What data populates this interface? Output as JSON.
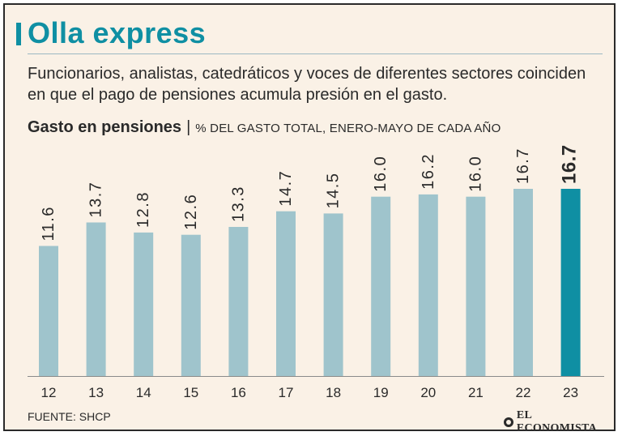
{
  "header": {
    "title": "Olla express",
    "subtitle": "Funcionarios, analistas, catedráticos y voces de diferentes sectores coinciden en que el pago de pensiones acumula presión en el gasto."
  },
  "chart_heading": {
    "title": "Gasto en pensiones",
    "separator": "|",
    "unit": "% DEL GASTO TOTAL, ENERO-MAYO DE CADA AÑO"
  },
  "chart_data": {
    "type": "bar",
    "title": "Gasto en pensiones",
    "ylabel": "% del gasto total, enero-mayo de cada año",
    "xlabel": "",
    "categories": [
      "12",
      "13",
      "14",
      "15",
      "16",
      "17",
      "18",
      "19",
      "20",
      "21",
      "22",
      "23"
    ],
    "values": [
      11.6,
      13.7,
      12.8,
      12.6,
      13.3,
      14.7,
      14.5,
      16.0,
      16.2,
      16.0,
      16.7,
      16.7
    ],
    "value_labels": [
      "11.6",
      "13.7",
      "12.8",
      "12.6",
      "13.3",
      "14.7",
      "14.5",
      "16.0",
      "16.2",
      "16.0",
      "16.7",
      "16.7"
    ],
    "highlight_index": 11,
    "ylim": [
      0,
      16.7
    ],
    "grid": false,
    "legend": "none"
  },
  "colors": {
    "title": "#0f8fa3",
    "bar": "#9fc4cc",
    "bar_highlight": "#0f8fa3",
    "background": "#faf1e6",
    "text": "#2a2a2a"
  },
  "footer": {
    "source": "FUENTE: SHCP",
    "brand": "EL ECONOMISTA",
    "brand_icon": "el-economista-logo-icon"
  }
}
